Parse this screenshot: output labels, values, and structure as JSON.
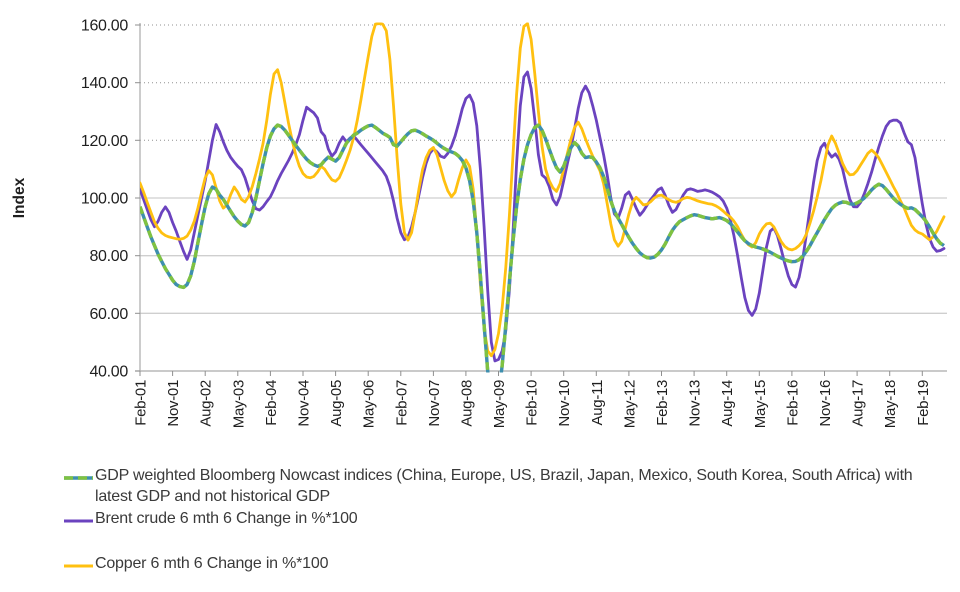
{
  "page": {
    "background": "#ffffff"
  },
  "axis": {
    "y_title": "Index",
    "y_tick_labels": [
      "160.00",
      "140.00",
      "120.00",
      "100.00",
      "80.00",
      "60.00",
      "40.00"
    ]
  },
  "chart_data": {
    "type": "line",
    "title": "",
    "xlabel": "",
    "ylabel": "Index",
    "ylim": [
      40,
      160
    ],
    "ytick_step": 20,
    "yticks": [
      {
        "value": 160,
        "label": "160.00"
      },
      {
        "value": 140,
        "label": "140.00"
      },
      {
        "value": 120,
        "label": "120.00"
      },
      {
        "value": 100,
        "label": "100.00"
      },
      {
        "value": 80,
        "label": "80.00"
      },
      {
        "value": 60,
        "label": "60.00"
      },
      {
        "value": 40,
        "label": "40.00"
      }
    ],
    "grid": "horizontal",
    "legend_position": "bottom-left",
    "x_unit": "month",
    "x_start_label": "Feb-01",
    "x_tick_interval": 9,
    "x_tick_labels": [
      "Feb-01",
      "Nov-01",
      "Aug-02",
      "May-03",
      "Feb-04",
      "Nov-04",
      "Aug-05",
      "May-06",
      "Feb-07",
      "Nov-07",
      "Aug-08",
      "May-09",
      "Feb-10",
      "Nov-10",
      "Aug-11",
      "May-12",
      "Feb-13",
      "Nov-13",
      "Aug-14",
      "May-15",
      "Feb-16",
      "Nov-16",
      "Aug-17",
      "May-18",
      "Feb-19"
    ],
    "clip_note": "values outside ylim are clipped at plot edges",
    "series": [
      {
        "name": "GDP weighted Bloomberg Nowcast indices (China, Europe, US, Brazil, Japan, Mexico, South Korea, South Africa) with latest GDP and not historical GDP",
        "color": "#7fc241",
        "marker_color": "#3e8fae",
        "style": "dashed-with-markers",
        "values": [
          97,
          93.5,
          90,
          86.5,
          83.5,
          80.5,
          78,
          75.5,
          73.5,
          71.5,
          70,
          69.3,
          69,
          70,
          73,
          78,
          84.5,
          91,
          97,
          101.5,
          103.8,
          103,
          101,
          99.5,
          97.5,
          95.5,
          93.5,
          92,
          90.8,
          90.3,
          91.5,
          95,
          100,
          106,
          112,
          117.5,
          121.5,
          124,
          125.3,
          124.8,
          123.5,
          121.8,
          120,
          118.3,
          116.6,
          115,
          113.5,
          112.3,
          111.5,
          111,
          111.5,
          113,
          114.2,
          113.5,
          112.8,
          114,
          116.5,
          119,
          120.5,
          121.8,
          122.5,
          123.5,
          124.3,
          125,
          125.3,
          124.5,
          123.5,
          122.5,
          121.8,
          121,
          118.5,
          118,
          119.5,
          121,
          122.3,
          123.3,
          123.5,
          123,
          122.3,
          121.5,
          120.8,
          120,
          119,
          118,
          117.2,
          116.5,
          116,
          115.5,
          114.5,
          113,
          110.5,
          106,
          99,
          88,
          73,
          56,
          40,
          30,
          27,
          31,
          42,
          56,
          71,
          85,
          97,
          106.5,
          113.5,
          118.5,
          122,
          124.5,
          125.3,
          123.5,
          120.5,
          117,
          113.5,
          110.5,
          109,
          111,
          114.5,
          117.5,
          119.2,
          118,
          115.5,
          114,
          114.3,
          114,
          112.5,
          110.5,
          107.5,
          103.5,
          99,
          95.5,
          93,
          90.8,
          88.5,
          86.3,
          84.3,
          82.5,
          81,
          80,
          79.3,
          79.2,
          79.5,
          80.5,
          82,
          84,
          86.5,
          88.8,
          90.5,
          91.8,
          92.5,
          93.2,
          93.8,
          94.2,
          94,
          93.6,
          93.2,
          93,
          92.8,
          93,
          93.2,
          92.8,
          92.2,
          91.2,
          89.8,
          88.2,
          86.6,
          85.2,
          84.2,
          83.5,
          83,
          82.7,
          82.3,
          81.8,
          81.2,
          80.5,
          79.8,
          79.2,
          78.6,
          78.2,
          77.9,
          78,
          78.6,
          79.8,
          81.5,
          83.5,
          85.8,
          88,
          90.3,
          92.5,
          94.5,
          96.3,
          97.5,
          98.2,
          98.6,
          98.5,
          98,
          97.8,
          98.3,
          99,
          100,
          101.3,
          102.8,
          104,
          104.8,
          104.3,
          103,
          101.5,
          100,
          98.8,
          97.8,
          97,
          96.4,
          96.6,
          96,
          94.8,
          93.5,
          92,
          90,
          87.8,
          85.8,
          84.3,
          83.5
        ]
      },
      {
        "name": "Brent crude 6 mth 6 Change in %*100",
        "color": "#6b43bf",
        "style": "solid",
        "values": [
          103,
          99.5,
          96,
          92.5,
          90,
          92,
          95,
          96.9,
          95,
          91.5,
          88.5,
          85,
          81.5,
          78.7,
          82,
          88,
          94,
          100,
          106,
          113,
          120,
          125.5,
          123,
          119.5,
          116.5,
          114.2,
          112.5,
          111,
          109.8,
          107,
          103,
          99,
          96.3,
          95.8,
          97,
          98.8,
          100.4,
          103,
          106,
          108.5,
          110.8,
          113,
          115.5,
          118.4,
          122,
          127,
          131.5,
          130.5,
          129.5,
          127.7,
          123,
          121.5,
          117,
          114.5,
          116,
          119,
          121.2,
          119.5,
          120.8,
          121.5,
          120,
          118.5,
          117,
          115.5,
          114,
          112.5,
          111,
          109.5,
          107.5,
          104,
          99,
          93,
          88,
          85.5,
          86.5,
          90,
          95,
          101,
          107,
          112,
          115.5,
          117,
          116,
          114.5,
          114,
          115.5,
          118,
          121.5,
          126,
          131,
          134.5,
          135.7,
          133,
          125,
          110,
          90,
          68,
          50,
          43.5,
          44,
          47,
          54,
          68,
          88,
          112,
          132,
          142,
          143.7,
          138,
          127,
          115,
          108,
          106.9,
          104,
          99.5,
          97.6,
          100.5,
          106,
          112,
          117.4,
          124,
          131,
          136.5,
          138.8,
          136.5,
          132,
          127,
          121,
          115,
          108,
          100,
          94.5,
          93,
          96.5,
          101,
          102.1,
          99.5,
          96.5,
          94,
          95.5,
          97.5,
          99.4,
          101,
          102.8,
          103.5,
          101,
          97.5,
          95,
          96,
          98.5,
          101,
          102.8,
          103.2,
          102.8,
          102.3,
          102.5,
          102.8,
          102.5,
          102,
          101.3,
          100.4,
          99,
          96.5,
          92.5,
          87,
          80,
          72.5,
          65.5,
          61,
          59.3,
          61.5,
          67,
          75,
          83,
          88.5,
          89.6,
          87,
          82.5,
          77.5,
          73,
          70,
          69.1,
          72.5,
          79,
          87.5,
          96.5,
          105.5,
          113,
          117.5,
          119,
          116,
          114.2,
          115.3,
          113.5,
          110,
          104.5,
          99.5,
          97,
          96.9,
          98.5,
          101.5,
          105,
          109,
          113.5,
          117.7,
          121.5,
          124.8,
          126.5,
          127,
          127,
          126,
          122.5,
          119.5,
          118.5,
          114,
          106,
          98,
          91,
          86,
          83,
          81.5,
          81.8,
          82.5
        ]
      },
      {
        "name": "Copper 6 mth 6 Change in %*100",
        "color": "#ffc010",
        "style": "solid",
        "values": [
          105.2,
          102,
          98.5,
          95,
          91.7,
          89.5,
          87.9,
          87,
          86.5,
          86.2,
          85.9,
          85.7,
          86,
          86.8,
          88.9,
          92,
          96.5,
          102,
          107,
          109.5,
          108,
          103.5,
          99,
          96.5,
          97.5,
          101,
          103.8,
          102,
          99.5,
          98.6,
          100.5,
          104,
          108.5,
          113.5,
          119,
          127,
          136,
          143,
          144.5,
          140,
          133,
          126,
          120.1,
          115,
          111,
          108.5,
          107.3,
          107,
          107.5,
          109,
          111,
          110,
          108,
          106.3,
          105.8,
          107,
          109.8,
          113,
          116.6,
          121,
          127,
          134,
          141.5,
          149,
          156,
          160.3,
          160.5,
          160.3,
          158,
          148,
          132,
          114,
          98,
          88,
          85.4,
          88,
          95,
          103,
          109.8,
          114,
          116.5,
          117.5,
          115,
          110.5,
          106,
          102.5,
          100.4,
          102,
          106.5,
          110.5,
          113.2,
          111,
          103,
          88,
          70,
          55,
          47,
          45.3,
          47.5,
          53,
          62,
          76,
          94,
          115,
          136,
          152,
          159.5,
          160.5,
          155,
          143,
          130,
          118,
          110,
          106,
          103.5,
          102.3,
          105,
          110,
          115.5,
          120.5,
          124.5,
          126.3,
          124,
          120.5,
          117.4,
          114.5,
          112,
          109.5,
          105,
          98,
          91,
          85.5,
          83.3,
          85,
          89.5,
          94.5,
          98.5,
          100.2,
          99,
          97.6,
          97.8,
          98.7,
          100,
          100.8,
          101,
          100.2,
          99.4,
          98.8,
          98.5,
          99,
          99.8,
          100.2,
          100,
          99.5,
          99,
          98.6,
          98.3,
          98,
          97.8,
          97.3,
          96.5,
          95.5,
          94.3,
          93.4,
          92,
          90,
          87.5,
          85.3,
          83.8,
          83,
          84.5,
          87.5,
          89.6,
          91,
          91.3,
          90,
          87.5,
          85,
          83.3,
          82.3,
          82,
          82.5,
          83.5,
          85,
          87.5,
          91.3,
          95.5,
          100.4,
          106,
          112.5,
          118.5,
          121.5,
          119,
          115.6,
          112,
          109.5,
          108,
          108.2,
          109.5,
          111.5,
          113.5,
          115.5,
          116.6,
          115.5,
          113.9,
          111.5,
          109,
          106.5,
          104,
          101.7,
          99,
          96.5,
          93.4,
          90.5,
          88.9,
          88,
          87.5,
          86.5,
          85.5,
          86.5,
          88.5,
          91,
          93.5
        ]
      }
    ]
  },
  "legend": {
    "items": [
      {
        "label": "GDP weighted Bloomberg Nowcast indices (China, Europe, US, Brazil, Japan, Mexico, South Korea, South Africa) with latest GDP and not historical GDP"
      },
      {
        "label": "Brent crude 6 mth 6 Change in %*100"
      },
      {
        "label": "Copper 6 mth 6 Change in %*100"
      }
    ]
  }
}
